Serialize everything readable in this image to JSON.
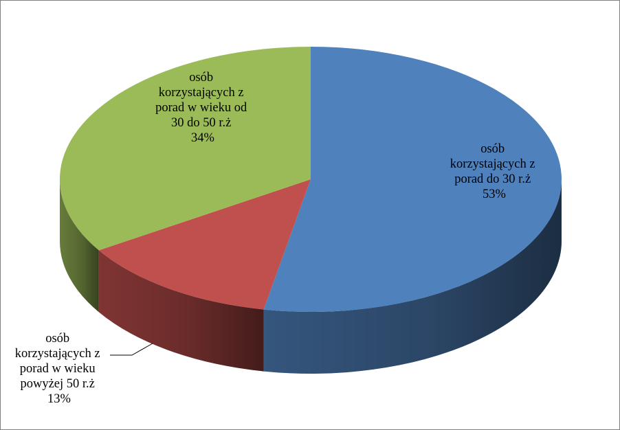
{
  "chart_data": {
    "type": "pie",
    "title": "",
    "three_d": true,
    "slices": [
      {
        "value": 53,
        "color": "#4f81bd",
        "label_lines": [
          "osób",
          "korzystających z",
          "porad  do 30 r.ż",
          "53%"
        ]
      },
      {
        "value": 13,
        "color": "#c0504d",
        "label_lines": [
          "osób",
          "korzystających z",
          "porad w wieku",
          "powyżej 50 r.ż",
          "13%"
        ]
      },
      {
        "value": 34,
        "color": "#9bbb59",
        "label_lines": [
          "osób",
          "korzystających z",
          "porad  w wieku od",
          "30 do 50 r.ż",
          "34%"
        ]
      }
    ]
  }
}
